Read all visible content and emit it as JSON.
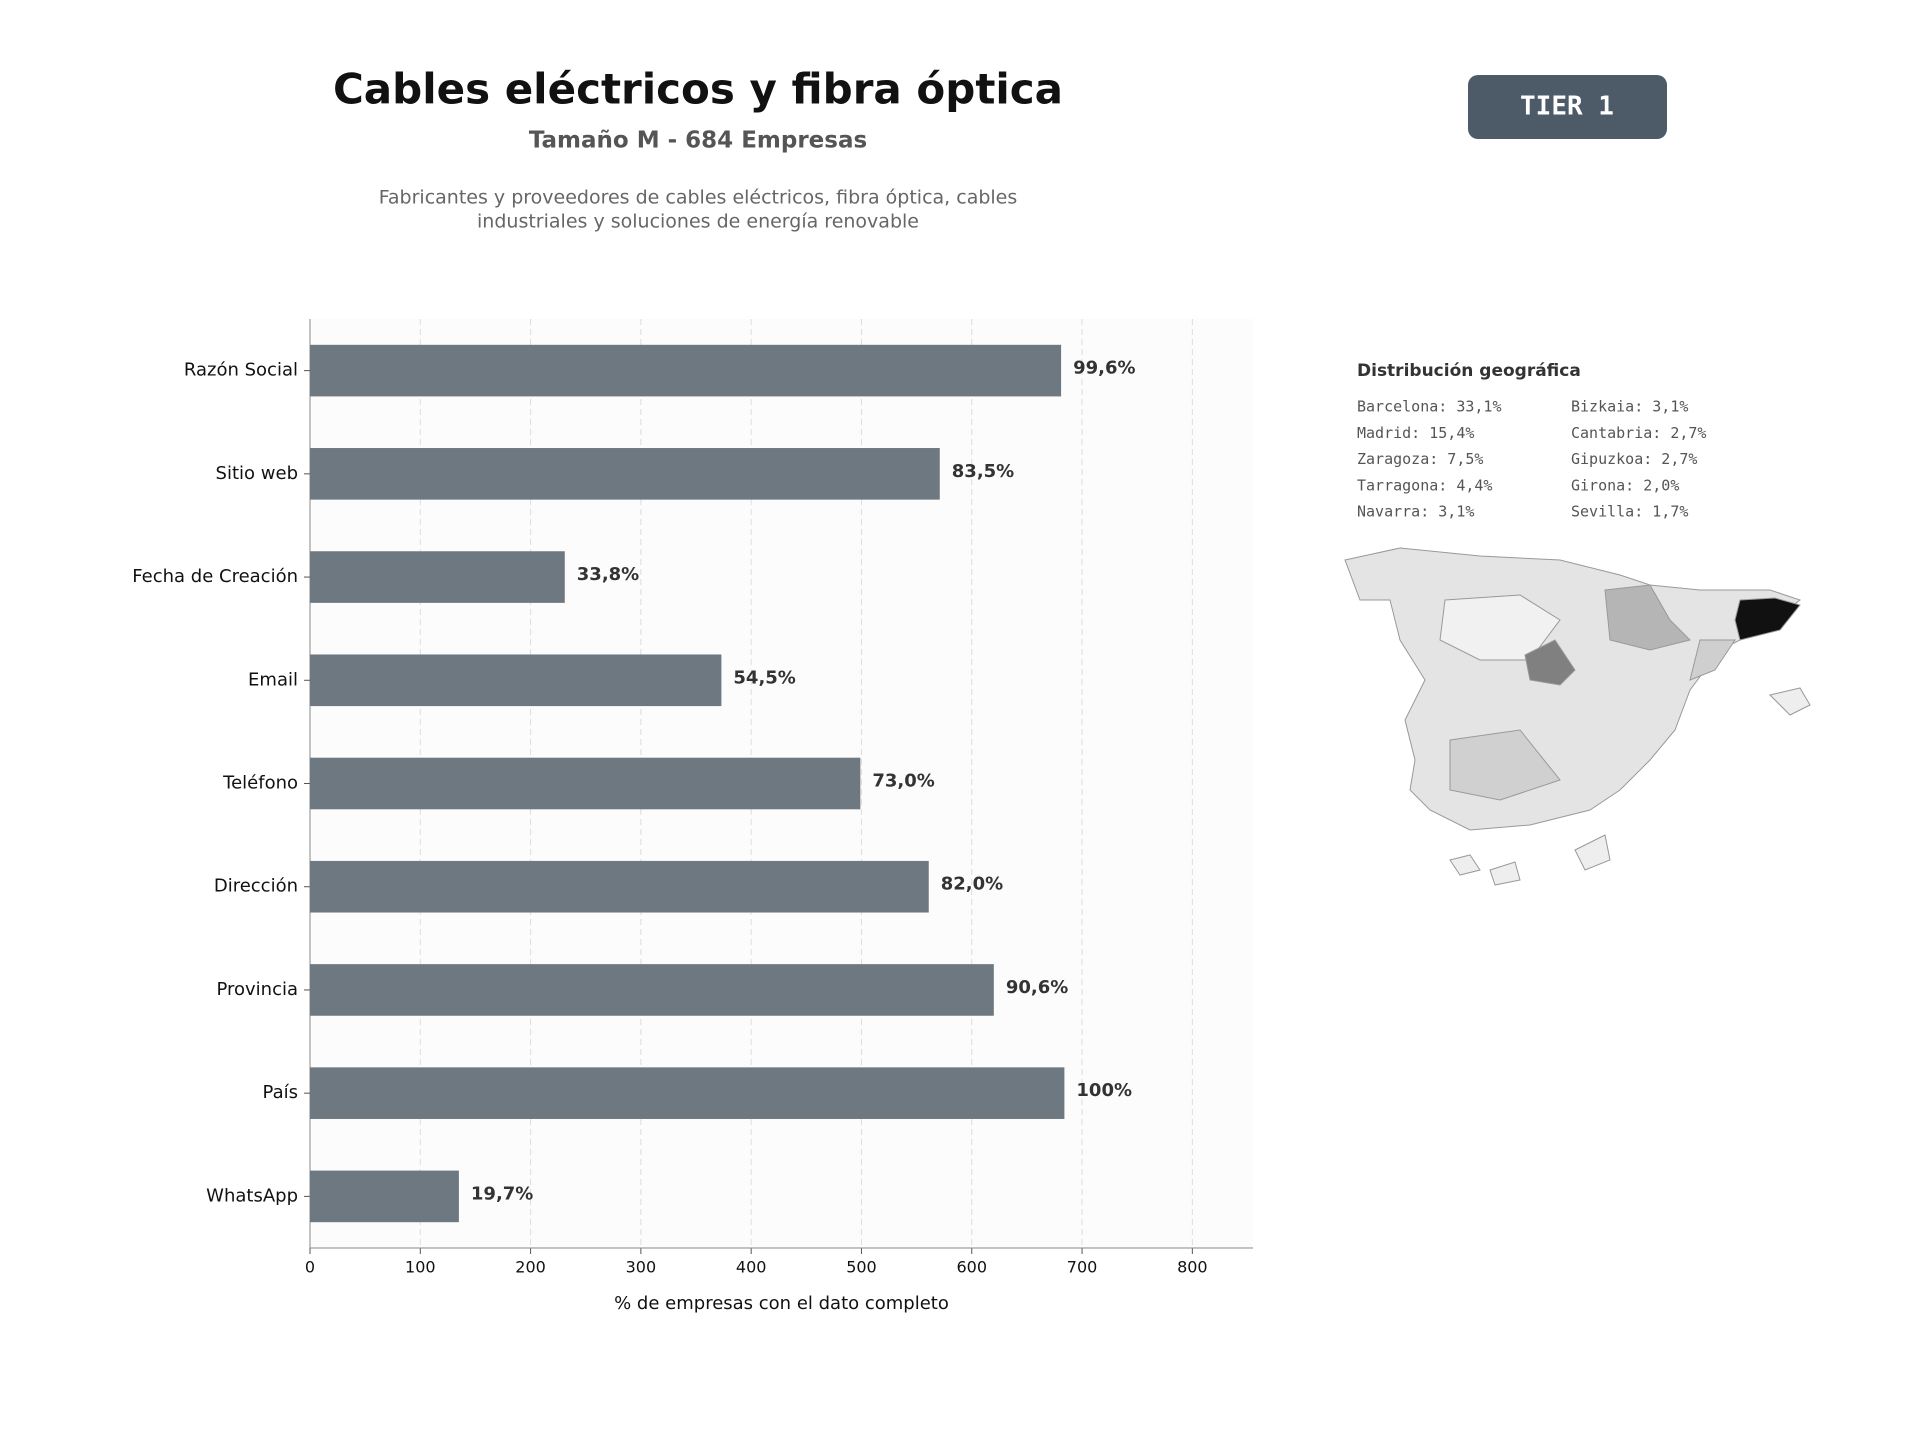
{
  "chart_data": {
    "type": "hbar",
    "title": "Cables eléctricos y fibra óptica",
    "subtitle": "Tamaño M - 684 Empresas",
    "description": [
      "Fabricantes y proveedores de cables eléctricos, fibra óptica, cables",
      "industriales y soluciones de energía renovable"
    ],
    "categories": [
      "Razón Social",
      "Sitio web",
      "Fecha de Creación",
      "Email",
      "Teléfono",
      "Dirección",
      "Provincia",
      "País",
      "WhatsApp"
    ],
    "values": [
      681,
      571,
      231,
      373,
      499,
      561,
      620,
      684,
      135
    ],
    "value_labels": [
      "99,6%",
      "83,5%",
      "33,8%",
      "54,5%",
      "73,0%",
      "82,0%",
      "90,6%",
      "100%",
      "19,7%"
    ],
    "color": "#6e7881",
    "xlabel": "% de empresas con el dato completo",
    "xlim": [
      0,
      855
    ],
    "xticks": [
      0,
      100,
      200,
      300,
      400,
      500,
      600,
      700,
      800
    ],
    "grid": true
  },
  "badge": "TIER 1",
  "geo": {
    "title": "Distribución geográfica",
    "entries": [
      [
        "Barcelona: 33,1%",
        "Madrid: 15,4%",
        "Zaragoza: 7,5%",
        "Tarragona: 4,4%",
        "Navarra: 3,1%"
      ],
      [
        "Bizkaia: 3,1%",
        "Cantabria: 2,7%",
        "Gipuzkoa: 2,7%",
        "Girona: 2,0%",
        "Sevilla: 1,7%"
      ]
    ]
  }
}
